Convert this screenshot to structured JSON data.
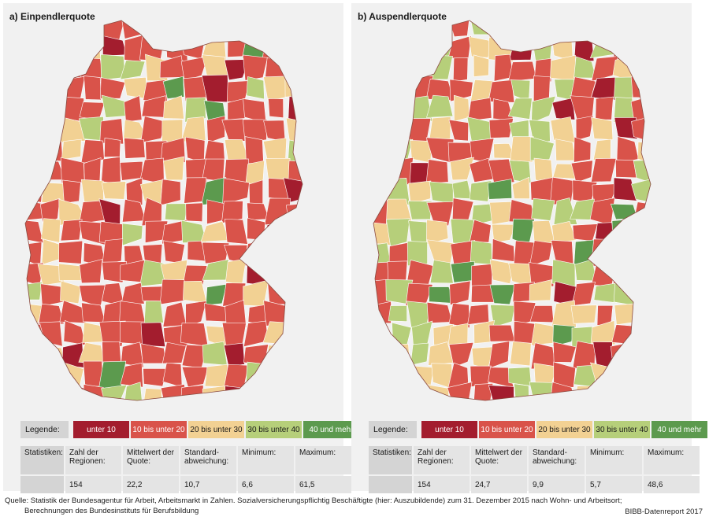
{
  "panels": [
    {
      "title": "a) Einpendlerquote",
      "stats": {
        "regions": "154",
        "mean": "22,2",
        "sd": "10,7",
        "min": "6,6",
        "max": "61,5"
      }
    },
    {
      "title": "b) Auspendlerquote",
      "stats": {
        "regions": "154",
        "mean": "24,7",
        "sd": "9,9",
        "min": "5,7",
        "max": "48,6"
      }
    }
  ],
  "legend": {
    "label": "Legende:",
    "classes": [
      {
        "label": "unter 10",
        "color": "#a31d2e"
      },
      {
        "label": "10 bis unter 20",
        "color": "#d9534a"
      },
      {
        "label": "20 bis unter 30",
        "color": "#f2d193"
      },
      {
        "label": "30 bis unter 40",
        "color": "#b6cf7a"
      },
      {
        "label": "40 und mehr",
        "color": "#5c9a4e"
      }
    ]
  },
  "stats_header": {
    "label": "Statistiken:",
    "regions": "Zahl der Regionen:",
    "mean": "Mittelwert der Quote:",
    "sd": "Standard-abweichung:",
    "min": "Minimum:",
    "max": "Maximum:"
  },
  "source": {
    "line1": "Quelle: Statistik der Bundesagentur für Arbeit, Arbeitsmarkt in Zahlen. Sozialversicherungspflichtig Beschäftigte (hier: Auszubildende) zum 31. Dezember 2015 nach Wohn- und Arbeitsort;",
    "line2": "Berechnungen des Bundesinstituts für Berufsbildung"
  },
  "credit": "BIBB-Datenreport 2017"
}
